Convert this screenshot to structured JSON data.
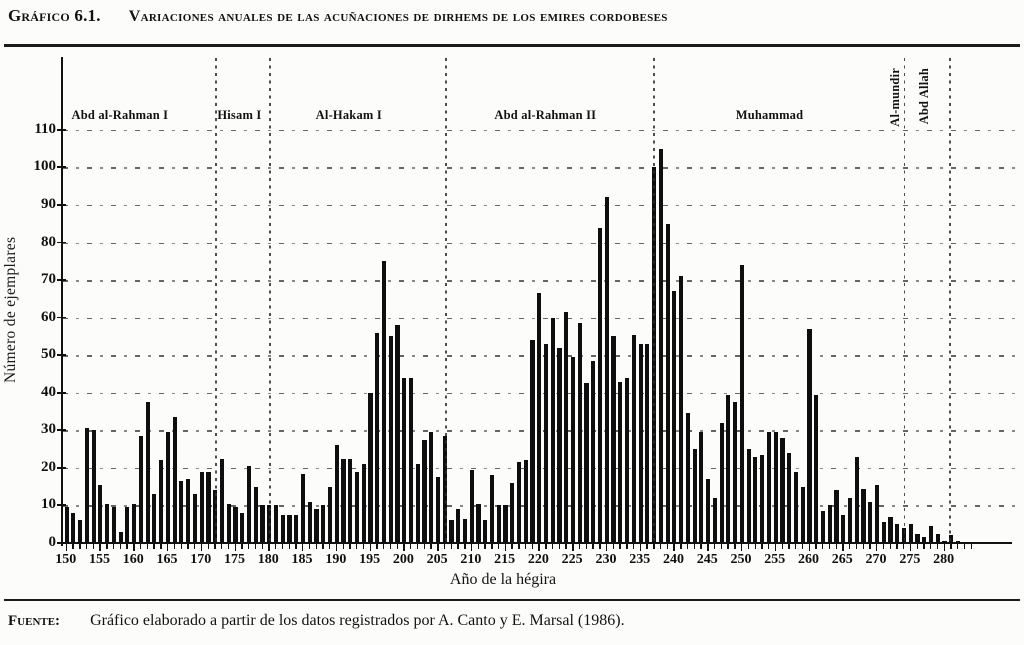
{
  "header": {
    "figure_label": "Gráfico 6.1.",
    "figure_title": "Variaciones anuales de las acuñaciones de dirhems de los emires cordobeses"
  },
  "footer": {
    "source_label": "Fuente:",
    "source_text": "Gráfico elaborado a partir de los datos registrados  por A. Canto y E. Marsal (1986)."
  },
  "colors": {
    "bar": "#0e0e0e",
    "ink": "#111111",
    "paper": "#fcfcfa"
  },
  "chart_data": {
    "type": "bar",
    "title": "Variaciones anuales de las acuñaciones de dirhems de los emires cordobeses",
    "xlabel": "Año de la hégira",
    "ylabel": "Número de ejemplares",
    "x_range": [
      150,
      282
    ],
    "ylim": [
      0,
      115
    ],
    "grid": "horizontal dash-dot lines every 10",
    "legend": "none",
    "y_ticks": [
      0,
      10,
      20,
      30,
      40,
      50,
      60,
      70,
      80,
      90,
      100,
      110
    ],
    "x_ticks": [
      150,
      155,
      160,
      165,
      170,
      175,
      180,
      185,
      190,
      195,
      200,
      205,
      210,
      215,
      220,
      225,
      230,
      235,
      240,
      245,
      250,
      255,
      260,
      265,
      270,
      275,
      280
    ],
    "x": [
      150,
      151,
      152,
      153,
      154,
      155,
      156,
      157,
      158,
      159,
      160,
      161,
      162,
      163,
      164,
      165,
      166,
      167,
      168,
      169,
      170,
      171,
      172,
      173,
      174,
      175,
      176,
      177,
      178,
      179,
      180,
      181,
      182,
      183,
      184,
      185,
      186,
      187,
      188,
      189,
      190,
      191,
      192,
      193,
      194,
      195,
      196,
      197,
      198,
      199,
      200,
      201,
      202,
      203,
      204,
      205,
      206,
      207,
      208,
      209,
      210,
      211,
      212,
      213,
      214,
      215,
      216,
      217,
      218,
      219,
      220,
      221,
      222,
      223,
      224,
      225,
      226,
      227,
      228,
      229,
      230,
      231,
      232,
      233,
      234,
      235,
      236,
      237,
      238,
      239,
      240,
      241,
      242,
      243,
      244,
      245,
      246,
      247,
      248,
      249,
      250,
      251,
      252,
      253,
      254,
      255,
      256,
      257,
      258,
      259,
      260,
      261,
      262,
      263,
      264,
      265,
      266,
      267,
      268,
      269,
      270,
      271,
      272,
      273,
      274,
      275,
      276,
      277,
      278,
      279,
      280,
      281,
      282
    ],
    "values": [
      9.5,
      8,
      6,
      30.5,
      30,
      15.5,
      10.5,
      9.5,
      3,
      9.5,
      10.5,
      28.5,
      37.5,
      13,
      22,
      29.5,
      33.5,
      16.5,
      17,
      13,
      19,
      19,
      14,
      22.5,
      10.5,
      9.5,
      8,
      20.5,
      15,
      10,
      10,
      10,
      7.5,
      7.5,
      7.5,
      18.5,
      11,
      9,
      10,
      15,
      26,
      22.5,
      22.5,
      19,
      21,
      40,
      56,
      75,
      55,
      58,
      44,
      44,
      21,
      27.5,
      29.5,
      17.5,
      28.5,
      6,
      9,
      6.5,
      19.5,
      10.5,
      6,
      18,
      10,
      10,
      16,
      21.5,
      22,
      54,
      66.5,
      53,
      60,
      52,
      61.5,
      49.5,
      58.5,
      42.5,
      48.5,
      84,
      92,
      55,
      43,
      44,
      55.5,
      53,
      53,
      100,
      105,
      85,
      67,
      71,
      34.5,
      25,
      29.5,
      17,
      12,
      32,
      39.5,
      37.5,
      74,
      25,
      23,
      23.5,
      29.5,
      29.5,
      28,
      24,
      19,
      15,
      57,
      39.5,
      8.5,
      10,
      14,
      7.5,
      12,
      23,
      14.5,
      11,
      15.5,
      5.5,
      7,
      5,
      4,
      5,
      2.5,
      1.5,
      4.5,
      2.5,
      0.5,
      2,
      0.5
    ],
    "reign_annotations": [
      {
        "label": "Abd al-Rahman I",
        "at_year": 158.2,
        "rotated": false
      },
      {
        "label": "Hisam I",
        "at_year": 175.9,
        "rotated": false
      },
      {
        "label": "Al-Hakam I",
        "at_year": 192.1,
        "rotated": false
      },
      {
        "label": "Abd al-Rahman II",
        "at_year": 221.2,
        "rotated": false
      },
      {
        "label": "Muhammad",
        "at_year": 254.4,
        "rotated": false
      },
      {
        "label": "Al-mundir",
        "at_year": 272.8,
        "rotated": true
      },
      {
        "label": "Abd Allah",
        "at_year": 277.2,
        "rotated": true
      }
    ],
    "boundary_lines_years": [
      172.2,
      180.2,
      206.2,
      237.05,
      274.1,
      280.9
    ]
  }
}
